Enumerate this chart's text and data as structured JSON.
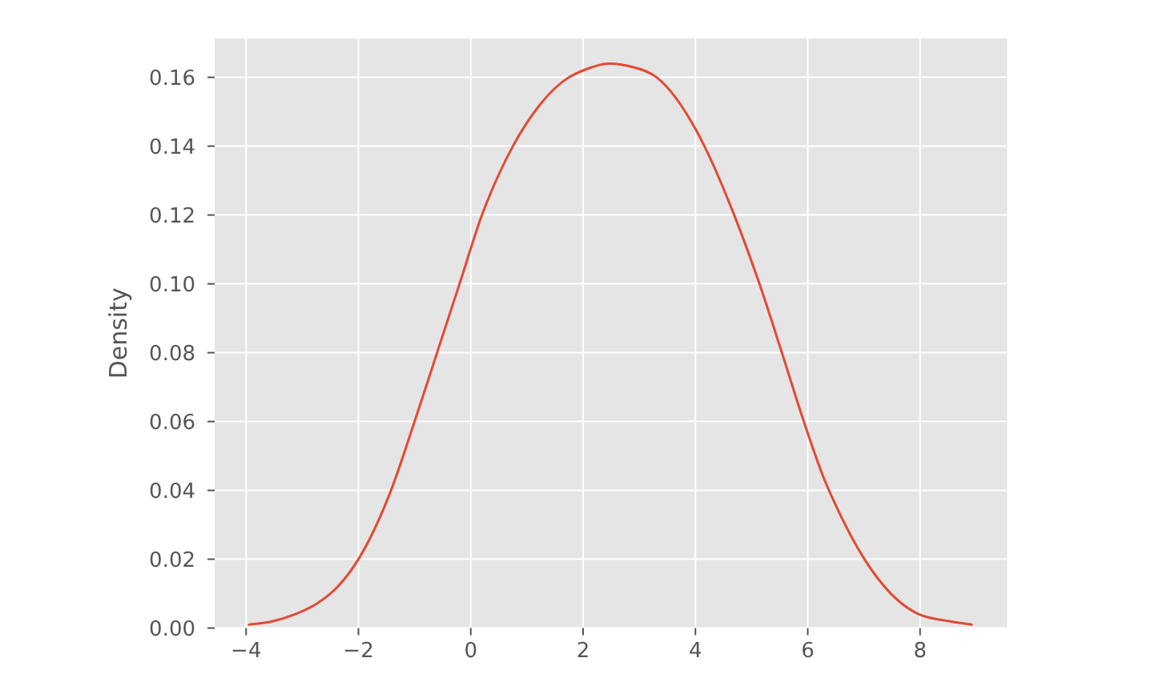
{
  "chart_data": {
    "type": "line",
    "ylabel": "Density",
    "x": [
      -3.95,
      -3.52,
      -3.13,
      -2.75,
      -2.37,
      -2.0,
      -1.42,
      -1.0,
      -0.6,
      -0.2,
      0.2,
      0.75,
      1.23,
      1.51,
      1.75,
      2.0,
      2.46,
      2.88,
      3.31,
      4.0,
      4.16,
      4.69,
      5.14,
      5.54,
      5.93,
      6.3,
      6.49,
      7.01,
      7.48,
      7.98,
      8.52,
      8.92
    ],
    "series": [
      {
        "color": "#e24a33",
        "values": [
          0.001,
          0.002,
          0.004,
          0.007,
          0.012,
          0.02,
          0.04,
          0.06,
          0.08,
          0.1,
          0.12,
          0.14,
          0.152,
          0.157,
          0.16,
          0.162,
          0.164,
          0.163,
          0.16,
          0.145,
          0.14,
          0.12,
          0.1,
          0.08,
          0.06,
          0.043,
          0.036,
          0.02,
          0.01,
          0.004,
          0.002,
          0.001
        ]
      }
    ],
    "xlim": [
      -4.56,
      9.55
    ],
    "ylim": [
      0,
      0.1713
    ],
    "xticks": [
      {
        "value": -4,
        "label": "−4"
      },
      {
        "value": -2,
        "label": "−2"
      },
      0,
      2,
      4,
      6,
      8
    ],
    "yticks": [
      {
        "value": 0,
        "label": "0.00"
      },
      {
        "value": 0.02,
        "label": "0.02"
      },
      {
        "value": 0.04,
        "label": "0.04"
      },
      {
        "value": 0.06,
        "label": "0.06"
      },
      {
        "value": 0.08,
        "label": "0.08"
      },
      {
        "value": 0.1,
        "label": "0.10"
      },
      {
        "value": 0.12,
        "label": "0.12"
      },
      {
        "value": 0.14,
        "label": "0.14"
      },
      {
        "value": 0.16,
        "label": "0.16"
      }
    ],
    "grid": true,
    "line_style": "solid"
  }
}
